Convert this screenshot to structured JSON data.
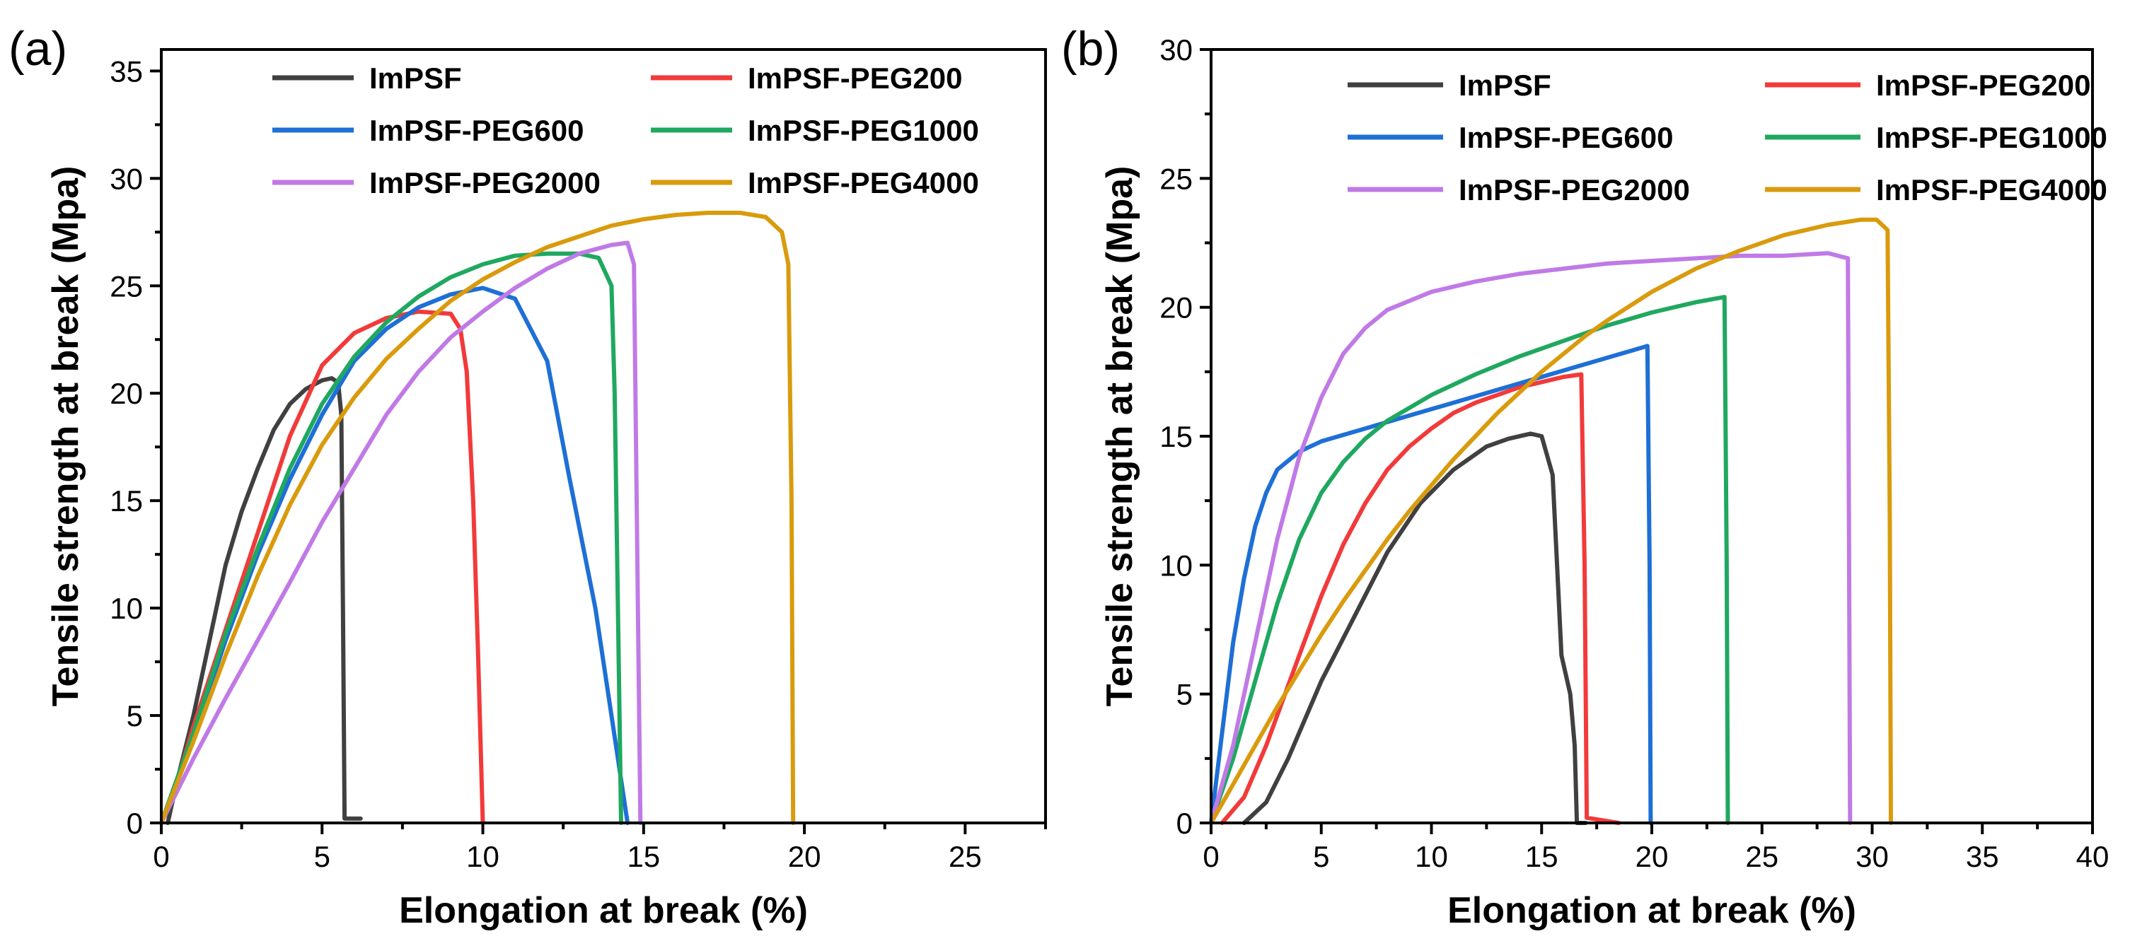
{
  "chart_data": [
    {
      "panel_label": "(a)",
      "type": "line",
      "title": "",
      "xlabel": "Elongation at break (%)",
      "ylabel": "Tensile strength at break (Mpa)",
      "xlim": [
        0,
        27.5
      ],
      "ylim": [
        0,
        36
      ],
      "xticks": [
        0,
        5,
        10,
        15,
        20,
        25
      ],
      "yticks": [
        0,
        5,
        10,
        15,
        20,
        25,
        30,
        35
      ],
      "legend_position": "top",
      "series": [
        {
          "name": "ImPSF",
          "color": "#404040",
          "points": [
            [
              0.2,
              0
            ],
            [
              0.5,
              2
            ],
            [
              1,
              5
            ],
            [
              1.5,
              8.5
            ],
            [
              2,
              12
            ],
            [
              2.5,
              14.5
            ],
            [
              3,
              16.5
            ],
            [
              3.5,
              18.3
            ],
            [
              4,
              19.5
            ],
            [
              4.5,
              20.2
            ],
            [
              5,
              20.6
            ],
            [
              5.3,
              20.7
            ],
            [
              5.5,
              20.5
            ],
            [
              5.6,
              19
            ],
            [
              5.65,
              10
            ],
            [
              5.7,
              0.2
            ],
            [
              6.2,
              0.2
            ]
          ]
        },
        {
          "name": "ImPSF-PEG200",
          "color": "#f23a3a",
          "points": [
            [
              0,
              0
            ],
            [
              0.5,
              2
            ],
            [
              1,
              4.5
            ],
            [
              2,
              9
            ],
            [
              3,
              13.5
            ],
            [
              4,
              18
            ],
            [
              5,
              21.3
            ],
            [
              6,
              22.8
            ],
            [
              7,
              23.5
            ],
            [
              8,
              23.8
            ],
            [
              9,
              23.7
            ],
            [
              9.3,
              23
            ],
            [
              9.5,
              21
            ],
            [
              9.7,
              15
            ],
            [
              9.85,
              8
            ],
            [
              10,
              0
            ]
          ]
        },
        {
          "name": "ImPSF-PEG600",
          "color": "#1e6fd6",
          "points": [
            [
              0,
              0
            ],
            [
              1,
              4
            ],
            [
              2,
              8.5
            ],
            [
              3,
              12.5
            ],
            [
              4,
              16
            ],
            [
              5,
              19
            ],
            [
              6,
              21.5
            ],
            [
              7,
              23
            ],
            [
              8,
              24
            ],
            [
              9,
              24.6
            ],
            [
              10,
              24.9
            ],
            [
              11,
              24.4
            ],
            [
              12,
              21.5
            ],
            [
              12.7,
              16
            ],
            [
              13.5,
              10
            ],
            [
              14.2,
              3
            ],
            [
              14.5,
              0
            ]
          ]
        },
        {
          "name": "ImPSF-PEG1000",
          "color": "#1fa860",
          "points": [
            [
              0,
              0
            ],
            [
              1,
              4.2
            ],
            [
              2,
              8.8
            ],
            [
              3,
              12.8
            ],
            [
              4,
              16.5
            ],
            [
              5,
              19.5
            ],
            [
              6,
              21.7
            ],
            [
              7,
              23.3
            ],
            [
              8,
              24.5
            ],
            [
              9,
              25.4
            ],
            [
              10,
              26
            ],
            [
              11,
              26.4
            ],
            [
              12,
              26.5
            ],
            [
              13,
              26.5
            ],
            [
              13.6,
              26.3
            ],
            [
              14,
              25
            ],
            [
              14.1,
              20
            ],
            [
              14.2,
              10
            ],
            [
              14.3,
              0
            ]
          ]
        },
        {
          "name": "ImPSF-PEG2000",
          "color": "#c07ae6",
          "points": [
            [
              0,
              0
            ],
            [
              1,
              3
            ],
            [
              2,
              5.8
            ],
            [
              3,
              8.5
            ],
            [
              4,
              11.2
            ],
            [
              5,
              14
            ],
            [
              6,
              16.5
            ],
            [
              7,
              19
            ],
            [
              8,
              21
            ],
            [
              9,
              22.6
            ],
            [
              10,
              23.8
            ],
            [
              11,
              24.9
            ],
            [
              12,
              25.8
            ],
            [
              13,
              26.5
            ],
            [
              14,
              26.9
            ],
            [
              14.5,
              27
            ],
            [
              14.7,
              26
            ],
            [
              14.8,
              13
            ],
            [
              14.9,
              0
            ]
          ]
        },
        {
          "name": "ImPSF-PEG4000",
          "color": "#d99b0d",
          "points": [
            [
              0,
              0
            ],
            [
              1,
              3.8
            ],
            [
              2,
              7.8
            ],
            [
              3,
              11.5
            ],
            [
              4,
              14.8
            ],
            [
              5,
              17.6
            ],
            [
              6,
              19.8
            ],
            [
              7,
              21.6
            ],
            [
              8,
              23
            ],
            [
              9,
              24.3
            ],
            [
              10,
              25.3
            ],
            [
              11,
              26.1
            ],
            [
              12,
              26.8
            ],
            [
              13,
              27.3
            ],
            [
              14,
              27.8
            ],
            [
              15,
              28.1
            ],
            [
              16,
              28.3
            ],
            [
              17,
              28.4
            ],
            [
              18,
              28.4
            ],
            [
              18.8,
              28.2
            ],
            [
              19.3,
              27.5
            ],
            [
              19.5,
              26
            ],
            [
              19.6,
              15
            ],
            [
              19.65,
              0
            ]
          ]
        }
      ]
    },
    {
      "panel_label": "(b)",
      "type": "line",
      "title": "",
      "xlabel": "Elongation at break (%)",
      "ylabel": "Tensile strength at break (Mpa)",
      "xlim": [
        0,
        40
      ],
      "ylim": [
        0,
        30
      ],
      "xticks": [
        0,
        5,
        10,
        15,
        20,
        25,
        30,
        35,
        40
      ],
      "yticks": [
        0,
        5,
        10,
        15,
        20,
        25,
        30
      ],
      "legend_position": "top",
      "series": [
        {
          "name": "ImPSF",
          "color": "#404040",
          "points": [
            [
              1.5,
              0
            ],
            [
              2.5,
              0.8
            ],
            [
              3.5,
              2.5
            ],
            [
              5,
              5.5
            ],
            [
              6.5,
              8
            ],
            [
              8,
              10.5
            ],
            [
              9.5,
              12.4
            ],
            [
              11,
              13.7
            ],
            [
              12.5,
              14.6
            ],
            [
              13.5,
              14.9
            ],
            [
              14.5,
              15.1
            ],
            [
              15,
              15
            ],
            [
              15.5,
              13.5
            ],
            [
              15.7,
              10
            ],
            [
              15.9,
              6.5
            ],
            [
              16.3,
              5
            ],
            [
              16.5,
              3
            ],
            [
              16.6,
              0
            ],
            [
              17,
              0
            ]
          ]
        },
        {
          "name": "ImPSF-PEG200",
          "color": "#f23a3a",
          "points": [
            [
              0.5,
              0
            ],
            [
              1.5,
              1
            ],
            [
              2.5,
              3
            ],
            [
              4,
              6.5
            ],
            [
              5,
              8.8
            ],
            [
              6,
              10.8
            ],
            [
              7,
              12.4
            ],
            [
              8,
              13.7
            ],
            [
              9,
              14.6
            ],
            [
              10,
              15.3
            ],
            [
              11,
              15.9
            ],
            [
              12,
              16.3
            ],
            [
              13,
              16.6
            ],
            [
              14,
              16.9
            ],
            [
              15,
              17.1
            ],
            [
              16,
              17.3
            ],
            [
              16.8,
              17.4
            ],
            [
              16.95,
              10
            ],
            [
              17.05,
              0.2
            ],
            [
              18.5,
              0
            ]
          ]
        },
        {
          "name": "ImPSF-PEG600",
          "color": "#1e6fd6",
          "points": [
            [
              0,
              0
            ],
            [
              0.5,
              3.5
            ],
            [
              1,
              7
            ],
            [
              1.5,
              9.5
            ],
            [
              2,
              11.5
            ],
            [
              2.5,
              12.8
            ],
            [
              3,
              13.7
            ],
            [
              4,
              14.4
            ],
            [
              5,
              14.8
            ],
            [
              7,
              15.3
            ],
            [
              9,
              15.8
            ],
            [
              11,
              16.3
            ],
            [
              13,
              16.8
            ],
            [
              15,
              17.3
            ],
            [
              17,
              17.8
            ],
            [
              19,
              18.3
            ],
            [
              19.8,
              18.5
            ],
            [
              19.9,
              10
            ],
            [
              19.95,
              0
            ]
          ]
        },
        {
          "name": "ImPSF-PEG1000",
          "color": "#1fa860",
          "points": [
            [
              0,
              0
            ],
            [
              1,
              2.5
            ],
            [
              2,
              5.5
            ],
            [
              3,
              8.5
            ],
            [
              4,
              11
            ],
            [
              5,
              12.8
            ],
            [
              6,
              14
            ],
            [
              7,
              14.9
            ],
            [
              8,
              15.6
            ],
            [
              10,
              16.6
            ],
            [
              12,
              17.4
            ],
            [
              14,
              18.1
            ],
            [
              16,
              18.7
            ],
            [
              18,
              19.3
            ],
            [
              20,
              19.8
            ],
            [
              22,
              20.2
            ],
            [
              23.3,
              20.4
            ],
            [
              23.4,
              10
            ],
            [
              23.45,
              0
            ]
          ]
        },
        {
          "name": "ImPSF-PEG2000",
          "color": "#c07ae6",
          "points": [
            [
              0,
              0
            ],
            [
              1,
              3
            ],
            [
              2,
              7
            ],
            [
              3,
              11
            ],
            [
              4,
              14.2
            ],
            [
              5,
              16.5
            ],
            [
              6,
              18.2
            ],
            [
              7,
              19.2
            ],
            [
              8,
              19.9
            ],
            [
              10,
              20.6
            ],
            [
              12,
              21
            ],
            [
              14,
              21.3
            ],
            [
              16,
              21.5
            ],
            [
              18,
              21.7
            ],
            [
              20,
              21.8
            ],
            [
              22,
              21.9
            ],
            [
              24,
              22
            ],
            [
              26,
              22
            ],
            [
              28,
              22.1
            ],
            [
              28.9,
              21.9
            ],
            [
              28.95,
              11
            ],
            [
              29,
              0
            ]
          ]
        },
        {
          "name": "ImPSF-PEG4000",
          "color": "#d99b0d",
          "points": [
            [
              0,
              0
            ],
            [
              1,
              1.5
            ],
            [
              2,
              3
            ],
            [
              3,
              4.5
            ],
            [
              4,
              5.9
            ],
            [
              5,
              7.3
            ],
            [
              6,
              8.6
            ],
            [
              7,
              9.8
            ],
            [
              8,
              11
            ],
            [
              9,
              12.1
            ],
            [
              10,
              13.1
            ],
            [
              11,
              14.1
            ],
            [
              12,
              15
            ],
            [
              13,
              15.9
            ],
            [
              14,
              16.7
            ],
            [
              15,
              17.5
            ],
            [
              16,
              18.2
            ],
            [
              17,
              18.9
            ],
            [
              18,
              19.5
            ],
            [
              20,
              20.6
            ],
            [
              22,
              21.5
            ],
            [
              24,
              22.2
            ],
            [
              26,
              22.8
            ],
            [
              28,
              23.2
            ],
            [
              29.5,
              23.4
            ],
            [
              30.2,
              23.4
            ],
            [
              30.7,
              23
            ],
            [
              30.8,
              12
            ],
            [
              30.85,
              0
            ]
          ]
        }
      ]
    }
  ]
}
